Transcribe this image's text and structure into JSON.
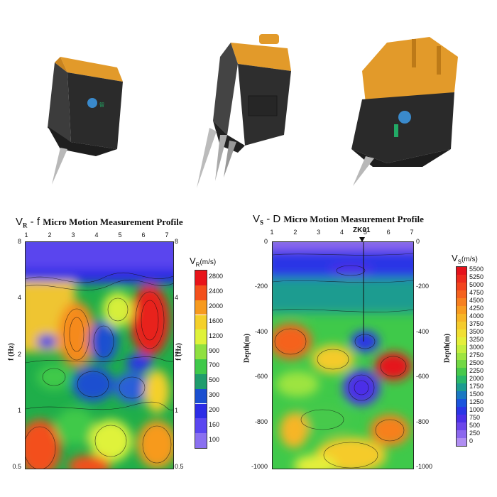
{
  "left_chart": {
    "title_prefix": "V",
    "title_sub": "R",
    "title_mid": " - f ",
    "title_text": "Micro Motion Measurement Profile",
    "top_ticks": [
      "1",
      "2",
      "3",
      "4",
      "5",
      "6",
      "7"
    ],
    "y_ticks": [
      "8",
      "4",
      "2",
      "1",
      "0.5"
    ],
    "ylabel": "f (Hz)",
    "colorbar_unit": "(m/s)",
    "colorbar_var": "V",
    "colorbar_sub": "R",
    "colorbar_values": [
      "2800",
      "2400",
      "2000",
      "1600",
      "1200",
      "900",
      "700",
      "500",
      "300",
      "200",
      "160",
      "100"
    ],
    "colorbar_colors": [
      "#e8141a",
      "#f3501c",
      "#f79a1e",
      "#f4d02a",
      "#dff23a",
      "#8fe040",
      "#3fc94a",
      "#1f9c6c",
      "#1a4fd0",
      "#2c2ce6",
      "#5a46f0",
      "#8a70f0"
    ]
  },
  "right_chart": {
    "title_prefix": "V",
    "title_sub": "S",
    "title_mid": " - D ",
    "title_text": "Micro Motion Measurement Profile",
    "top_ticks": [
      "1",
      "2",
      "3",
      "4",
      "5",
      "6",
      "7"
    ],
    "y_ticks": [
      "0",
      "-200",
      "-400",
      "-600",
      "-800",
      "-1000"
    ],
    "ylabel": "Depth(m)",
    "marker_label": "ZK01",
    "colorbar_var": "V",
    "colorbar_sub": "S",
    "colorbar_unit": "(m/s)",
    "colorbar_values": [
      "5500",
      "5250",
      "5000",
      "4750",
      "4500",
      "4250",
      "4000",
      "3750",
      "3500",
      "3250",
      "3000",
      "2750",
      "2500",
      "2250",
      "2000",
      "1750",
      "1500",
      "1250",
      "1000",
      "750",
      "500",
      "250",
      "0"
    ],
    "colorbar_colors": [
      "#e5121b",
      "#ec2a1c",
      "#f2431d",
      "#f5621e",
      "#f7801f",
      "#f89c20",
      "#f7b526",
      "#f5cb2c",
      "#f1df33",
      "#e4ef3a",
      "#c4ee3e",
      "#9de441",
      "#72d845",
      "#47c94c",
      "#2ab86a",
      "#1c9c90",
      "#1a78c2",
      "#1a54dd",
      "#2a35e6",
      "#4b2fe8",
      "#6b46ea",
      "#8c68ee",
      "#b08ef2"
    ]
  }
}
